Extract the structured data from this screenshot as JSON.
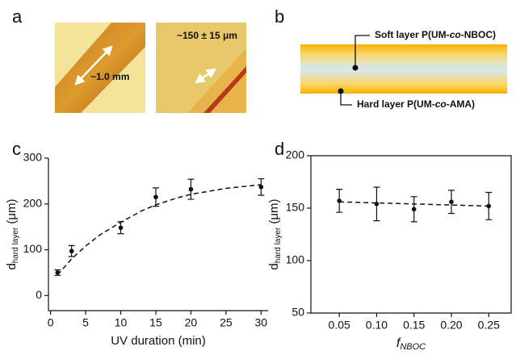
{
  "panel_labels": [
    "a",
    "b",
    "c",
    "d"
  ],
  "panel_a": {
    "left_label": "~1.0 mm",
    "right_label": "~150 ± 15 μm"
  },
  "panel_b": {
    "soft_label": [
      "Soft layer P(UM-",
      "co",
      "-NBOC)"
    ],
    "hard_label": [
      "Hard layer P(UM-",
      "co",
      "-AMA)"
    ]
  },
  "chart_data": [
    {
      "type": "scatter",
      "xlabel": "UV duration (min)",
      "ylabel": [
        "d",
        "hard layer",
        " (μm)"
      ],
      "x": [
        1,
        3,
        10,
        15,
        20,
        30
      ],
      "values": [
        50,
        97,
        148,
        215,
        232,
        237
      ],
      "errors": [
        6,
        12,
        13,
        20,
        22,
        18
      ],
      "fit": {
        "x": [
          1,
          3,
          5,
          7,
          10,
          13,
          15,
          18,
          20,
          25,
          30
        ],
        "values": [
          45,
          80,
          108,
          132,
          160,
          185,
          198,
          213,
          221,
          234,
          242
        ]
      },
      "xlim": [
        -0.3,
        31
      ],
      "ylim": [
        -33,
        300
      ],
      "xticks": [
        0,
        5,
        10,
        15,
        20,
        25,
        30
      ],
      "yticks": [
        0,
        100,
        200,
        300
      ],
      "color": "#111111",
      "box": false
    },
    {
      "type": "scatter",
      "xlabel": [
        "f",
        "NBOC"
      ],
      "ylabel": [
        "d",
        "hard layer",
        " (μm)"
      ],
      "x": [
        0.05,
        0.1,
        0.15,
        0.2,
        0.25
      ],
      "values": [
        157,
        154,
        149,
        156,
        152
      ],
      "errors": [
        11,
        16,
        12,
        11,
        13
      ],
      "fit": {
        "x": [
          0.05,
          0.25
        ],
        "values": [
          156,
          152
        ]
      },
      "xlim": [
        0.012,
        0.28
      ],
      "ylim": [
        50,
        200
      ],
      "xticks": [
        0.05,
        {
          "value": 0.1,
          "label": "0.10"
        },
        0.15,
        {
          "value": 0.2,
          "label": "0.20"
        },
        0.25
      ],
      "yticks": [
        50,
        100,
        150,
        200
      ],
      "color": "#111111",
      "box": true
    }
  ]
}
